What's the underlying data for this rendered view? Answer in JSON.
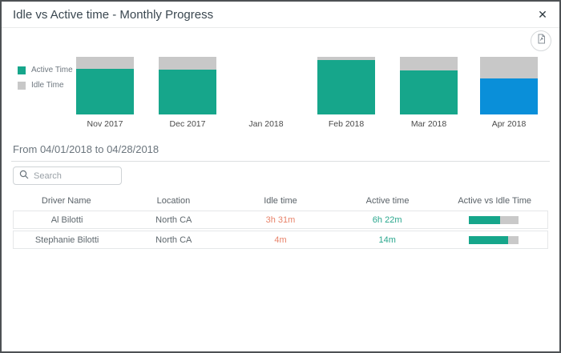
{
  "dialog": {
    "title": "Idle vs Active time - Monthly Progress",
    "close_glyph": "✕"
  },
  "chart_data": {
    "type": "bar",
    "subtype": "100%-stacked-column",
    "categories": [
      "Nov 2017",
      "Dec 2017",
      "Jan 2018",
      "Feb 2018",
      "Mar 2018",
      "Apr 2018"
    ],
    "series": [
      {
        "name": "Active Time",
        "values": [
          79,
          78,
          null,
          95,
          77,
          62
        ]
      },
      {
        "name": "Idle Time",
        "values": [
          21,
          22,
          null,
          5,
          23,
          38
        ]
      }
    ],
    "units": "percent",
    "ylim": [
      0,
      100
    ],
    "grid": false,
    "legend_position": "left",
    "selected_category": "Apr 2018",
    "colors": {
      "active": "#16a68b",
      "idle": "#c8c8c8",
      "selected_active": "#0a8fd9"
    }
  },
  "legend": {
    "items": [
      {
        "label": "Active Time",
        "color": "#16a68b"
      },
      {
        "label": "Idle Time",
        "color": "#c8c8c8"
      }
    ]
  },
  "filter": {
    "date_range_label": "From 04/01/2018 to 04/28/2018"
  },
  "search": {
    "placeholder": "Search",
    "value": ""
  },
  "table": {
    "columns": [
      "Driver Name",
      "Location",
      "Idle time",
      "Active time",
      "Active vs Idle Time"
    ],
    "rows": [
      {
        "driver_name": "Al Bilotti",
        "location": "North CA",
        "idle_time": "3h 31m",
        "active_time": "6h 22m",
        "active_pct": 62
      },
      {
        "driver_name": "Stephanie Bilotti",
        "location": "North CA",
        "idle_time": "4m",
        "active_time": "14m",
        "active_pct": 78
      }
    ]
  }
}
